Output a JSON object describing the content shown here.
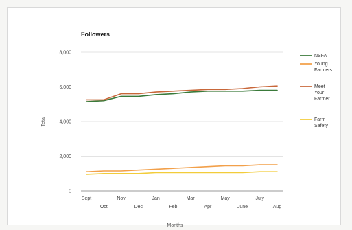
{
  "chart_data": {
    "type": "line",
    "title": "Followers",
    "xlabel": "Months",
    "ylabel": "Total",
    "ylim": [
      0,
      8000
    ],
    "yticks": [
      0,
      2000,
      4000,
      6000,
      8000
    ],
    "ytick_labels": [
      "0",
      "2,000",
      "4,000",
      "6,000",
      "8,000"
    ],
    "grid": true,
    "legend_position": "right",
    "categories": [
      "Sept",
      "Oct",
      "Nov",
      "Dec",
      "Jan",
      "Feb",
      "Mar",
      "Apr",
      "May",
      "June",
      "July",
      "Aug"
    ],
    "series": [
      {
        "name": "NSFA",
        "color": "#3a7a3a",
        "values": [
          5150,
          5200,
          5450,
          5450,
          5550,
          5600,
          5700,
          5750,
          5750,
          5750,
          5800,
          5800
        ]
      },
      {
        "name": "Young Farmers",
        "color": "#f2a04a",
        "values": [
          1100,
          1150,
          1150,
          1200,
          1250,
          1300,
          1350,
          1400,
          1450,
          1450,
          1500,
          1500
        ]
      },
      {
        "name": "Meet Your Farmer",
        "color": "#c8673a",
        "values": [
          5250,
          5250,
          5600,
          5600,
          5700,
          5750,
          5800,
          5850,
          5850,
          5900,
          6000,
          6050
        ]
      },
      {
        "name": "Farm Safety",
        "color": "#f2cc3a",
        "values": [
          950,
          1000,
          1000,
          1000,
          1050,
          1050,
          1050,
          1050,
          1050,
          1050,
          1100,
          1100
        ]
      }
    ],
    "legend_labels": [
      [
        "NSFA"
      ],
      [
        "Young",
        "Farmers"
      ],
      [
        "Meet",
        "Your",
        "Farmer"
      ],
      [
        "Farm",
        "Safety"
      ]
    ]
  }
}
